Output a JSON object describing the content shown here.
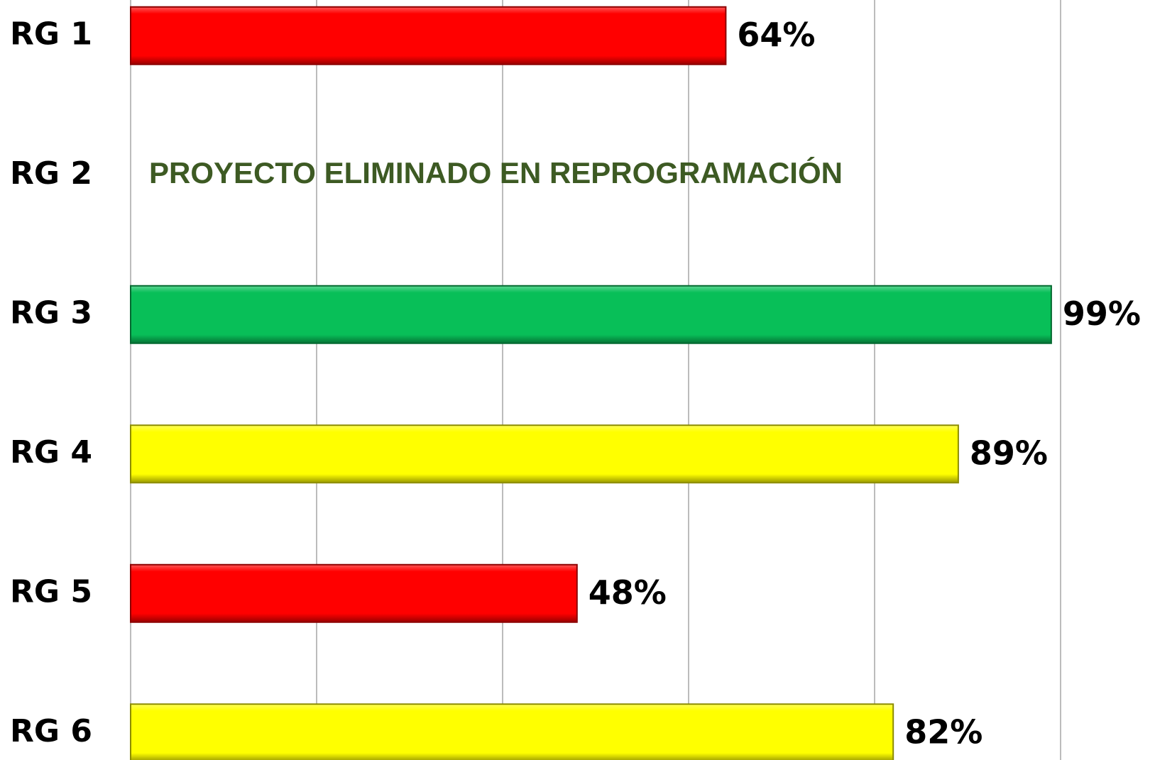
{
  "chart_data": {
    "type": "bar",
    "orientation": "horizontal",
    "categories": [
      "RG 1",
      "RG 2",
      "RG 3",
      "RG 4",
      "RG 5",
      "RG 6"
    ],
    "values": [
      64,
      null,
      99,
      89,
      48,
      82
    ],
    "value_labels": [
      "64%",
      null,
      "99%",
      "89%",
      "48%",
      "82%"
    ],
    "colors": [
      "#ff0000",
      null,
      "#08bf58",
      "#ffff00",
      "#ff0000",
      "#ffff00"
    ],
    "annotation": "PROYECTO ELIMINADO EN REPROGRAMACIÓN",
    "annotation_color": "#3d5a23",
    "xlim": [
      0,
      100
    ],
    "xticks": [
      0,
      20,
      40,
      60,
      80,
      100
    ],
    "grid": true
  }
}
